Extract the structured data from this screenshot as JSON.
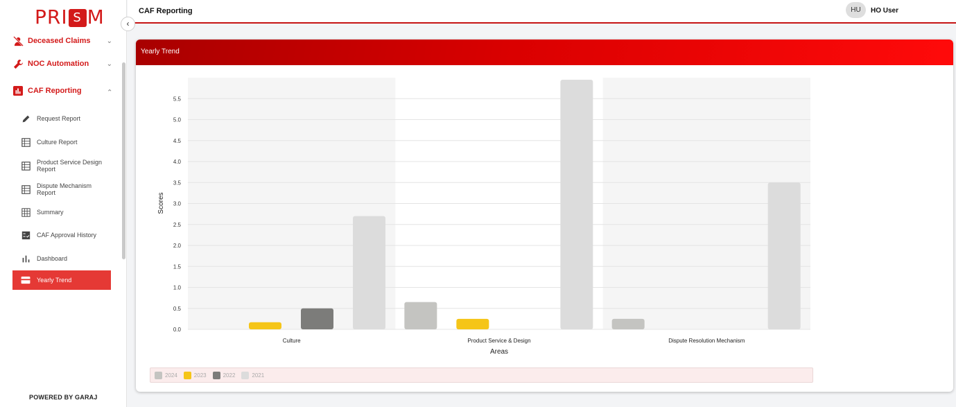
{
  "brand": {
    "left": "PRI",
    "mark": "S",
    "right": "M"
  },
  "sidebar": {
    "groups": [
      {
        "label": "Deceased Claims",
        "icon": "person-off-icon"
      },
      {
        "label": "NOC Automation",
        "icon": "wrench-icon"
      },
      {
        "label": "CAF Reporting",
        "icon": "bar-chart-icon"
      }
    ],
    "items": [
      {
        "label": "Request Report",
        "icon": "pencil-icon"
      },
      {
        "label": "Culture Report",
        "icon": "table-icon"
      },
      {
        "label": "Product Service Design Report",
        "icon": "table-icon"
      },
      {
        "label": "Dispute Mechanism Report",
        "icon": "table-icon"
      },
      {
        "label": "Summary",
        "icon": "grid-icon"
      },
      {
        "label": "CAF Approval History",
        "icon": "checklist-icon"
      },
      {
        "label": "Dashboard",
        "icon": "bar-chart-icon"
      },
      {
        "label": "Yearly Trend",
        "icon": "card-icon"
      }
    ],
    "footer": "POWERED BY GARAJ"
  },
  "header": {
    "title": "CAF Reporting",
    "avatar_initials": "HU",
    "user_name": "HO User"
  },
  "card": {
    "title": "Yearly Trend"
  },
  "colors": {
    "accent": "#d31a1a",
    "series_2024": "#c4c4c1",
    "series_2023": "#f5c518",
    "series_2022": "#7c7c7a",
    "series_2021": "#dcdcdc"
  },
  "chart_data": {
    "type": "bar",
    "categories": [
      "Culture",
      "Product Service & Design",
      "Dispute Resolution Mechanism"
    ],
    "series": [
      {
        "name": "2024",
        "values": [
          0,
          0.65,
          0.25
        ]
      },
      {
        "name": "2023",
        "values": [
          0.17,
          0.25,
          0
        ]
      },
      {
        "name": "2022",
        "values": [
          0.5,
          0,
          0
        ]
      },
      {
        "name": "2021",
        "values": [
          2.7,
          5.95,
          3.5
        ]
      }
    ],
    "xlabel": "Areas",
    "ylabel": "Scores",
    "ylim": [
      0,
      6
    ],
    "yticks": [
      "0.0",
      "0.5",
      "1.0",
      "1.5",
      "2.0",
      "2.5",
      "3.0",
      "3.5",
      "4.0",
      "4.5",
      "5.0",
      "5.5"
    ],
    "grid": true,
    "legend_position": "bottom"
  }
}
